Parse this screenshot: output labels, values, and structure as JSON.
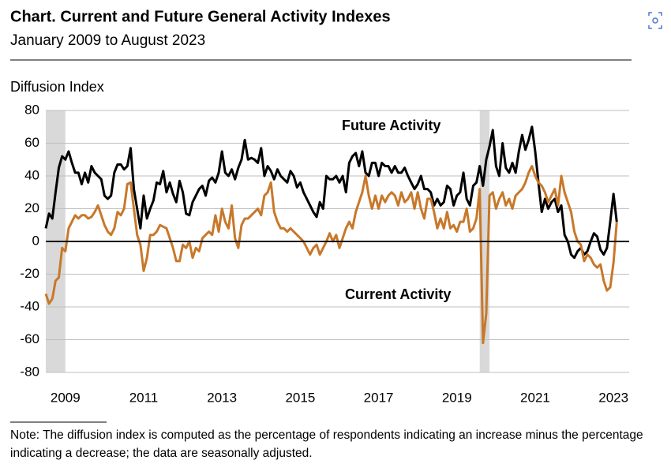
{
  "chart_data": {
    "type": "line",
    "title": "Chart. Current and Future General Activity Indexes",
    "subtitle": "January 2009 to August 2023",
    "y_label": "Diffusion Index",
    "note": "Note: The diffusion index is computed as the percentage of respondents indicating an increase minus the percentage indicating a decrease; the data are seasonally adjusted.",
    "xlim": [
      2009,
      2023.9
    ],
    "ylim": [
      -80,
      80
    ],
    "yticks": [
      -80,
      -60,
      -40,
      -20,
      0,
      20,
      40,
      60,
      80
    ],
    "xticks": [
      {
        "value": 2009.5,
        "label": "2009"
      },
      {
        "value": 2011.5,
        "label": "2011"
      },
      {
        "value": 2013.5,
        "label": "2013"
      },
      {
        "value": 2015.5,
        "label": "2015"
      },
      {
        "value": 2017.5,
        "label": "2017"
      },
      {
        "value": 2019.5,
        "label": "2019"
      },
      {
        "value": 2021.5,
        "label": "2021"
      },
      {
        "value": 2023.5,
        "label": "2023"
      }
    ],
    "grid": true,
    "shaded_periods": [
      [
        2009,
        2009.5
      ],
      [
        2020.083,
        2020.333
      ]
    ],
    "x": [
      2009,
      2009.083,
      2009.167,
      2009.25,
      2009.333,
      2009.417,
      2009.5,
      2009.583,
      2009.667,
      2009.75,
      2009.833,
      2009.917,
      2010,
      2010.083,
      2010.167,
      2010.25,
      2010.333,
      2010.417,
      2010.5,
      2010.583,
      2010.667,
      2010.75,
      2010.833,
      2010.917,
      2011,
      2011.083,
      2011.167,
      2011.25,
      2011.333,
      2011.417,
      2011.5,
      2011.583,
      2011.667,
      2011.75,
      2011.833,
      2011.917,
      2012,
      2012.083,
      2012.167,
      2012.25,
      2012.333,
      2012.417,
      2012.5,
      2012.583,
      2012.667,
      2012.75,
      2012.833,
      2012.917,
      2013,
      2013.083,
      2013.167,
      2013.25,
      2013.333,
      2013.417,
      2013.5,
      2013.583,
      2013.667,
      2013.75,
      2013.833,
      2013.917,
      2014,
      2014.083,
      2014.167,
      2014.25,
      2014.333,
      2014.417,
      2014.5,
      2014.583,
      2014.667,
      2014.75,
      2014.833,
      2014.917,
      2015,
      2015.083,
      2015.167,
      2015.25,
      2015.333,
      2015.417,
      2015.5,
      2015.583,
      2015.667,
      2015.75,
      2015.833,
      2015.917,
      2016,
      2016.083,
      2016.167,
      2016.25,
      2016.333,
      2016.417,
      2016.5,
      2016.583,
      2016.667,
      2016.75,
      2016.833,
      2016.917,
      2017,
      2017.083,
      2017.167,
      2017.25,
      2017.333,
      2017.417,
      2017.5,
      2017.583,
      2017.667,
      2017.75,
      2017.833,
      2017.917,
      2018,
      2018.083,
      2018.167,
      2018.25,
      2018.333,
      2018.417,
      2018.5,
      2018.583,
      2018.667,
      2018.75,
      2018.833,
      2018.917,
      2019,
      2019.083,
      2019.167,
      2019.25,
      2019.333,
      2019.417,
      2019.5,
      2019.583,
      2019.667,
      2019.75,
      2019.833,
      2019.917,
      2020,
      2020.083,
      2020.167,
      2020.25,
      2020.333,
      2020.417,
      2020.5,
      2020.583,
      2020.667,
      2020.75,
      2020.833,
      2020.917,
      2021,
      2021.083,
      2021.167,
      2021.25,
      2021.333,
      2021.417,
      2021.5,
      2021.583,
      2021.667,
      2021.75,
      2021.833,
      2021.917,
      2022,
      2022.083,
      2022.167,
      2022.25,
      2022.333,
      2022.417,
      2022.5,
      2022.583,
      2022.667,
      2022.75,
      2022.833,
      2022.917,
      2023,
      2023.083,
      2023.167,
      2023.25,
      2023.333,
      2023.417,
      2023.5,
      2023.583
    ],
    "series": [
      {
        "name": "Future Activity",
        "color": "#000000",
        "values": [
          8,
          17,
          14,
          30,
          45,
          52,
          50,
          55,
          48,
          42,
          42,
          35,
          42,
          36,
          46,
          42,
          40,
          38,
          28,
          26,
          28,
          42,
          47,
          47,
          44,
          46,
          57,
          32,
          20,
          8,
          28,
          14,
          20,
          25,
          36,
          35,
          43,
          30,
          36,
          29,
          24,
          37,
          30,
          17,
          16,
          24,
          28,
          32,
          34,
          28,
          37,
          39,
          36,
          42,
          55,
          42,
          40,
          44,
          38,
          45,
          50,
          62,
          50,
          51,
          50,
          48,
          57,
          40,
          46,
          43,
          38,
          44,
          40,
          38,
          36,
          43,
          40,
          33,
          36,
          30,
          26,
          22,
          18,
          15,
          24,
          20,
          40,
          38,
          38,
          40,
          36,
          40,
          30,
          48,
          52,
          54,
          46,
          55,
          42,
          40,
          48,
          48,
          40,
          48,
          46,
          46,
          42,
          46,
          42,
          42,
          45,
          40,
          36,
          32,
          35,
          40,
          32,
          32,
          30,
          22,
          26,
          22,
          24,
          34,
          32,
          22,
          28,
          30,
          42,
          26,
          22,
          34,
          36,
          46,
          34,
          50,
          58,
          68,
          46,
          40,
          60,
          45,
          42,
          48,
          42,
          55,
          65,
          56,
          62,
          70,
          55,
          36,
          18,
          26,
          20,
          24,
          26,
          18,
          22,
          4,
          0,
          -8,
          -10,
          -6,
          -4,
          -8,
          -6,
          0,
          5,
          3,
          -5,
          -8,
          -4,
          12,
          29,
          12
        ]
      },
      {
        "name": "Current Activity",
        "color": "#c8782a",
        "values": [
          -32,
          -38,
          -35,
          -24,
          -22,
          -4,
          -6,
          8,
          12,
          16,
          14,
          16,
          16,
          14,
          15,
          18,
          22,
          16,
          10,
          6,
          4,
          8,
          18,
          16,
          20,
          35,
          36,
          20,
          4,
          -2,
          -18,
          -10,
          4,
          4,
          6,
          10,
          9,
          8,
          2,
          -4,
          -12,
          -12,
          -2,
          -4,
          0,
          -10,
          -4,
          -6,
          2,
          4,
          6,
          4,
          16,
          6,
          20,
          12,
          8,
          22,
          2,
          -4,
          10,
          14,
          14,
          16,
          18,
          20,
          16,
          28,
          30,
          36,
          18,
          12,
          8,
          8,
          6,
          8,
          6,
          4,
          2,
          0,
          -4,
          -8,
          -4,
          -2,
          -8,
          -4,
          0,
          5,
          0,
          4,
          -4,
          2,
          8,
          12,
          8,
          18,
          24,
          30,
          40,
          28,
          20,
          28,
          20,
          28,
          24,
          28,
          30,
          28,
          22,
          30,
          24,
          26,
          30,
          20,
          30,
          20,
          14,
          26,
          26,
          18,
          8,
          14,
          8,
          18,
          8,
          10,
          6,
          12,
          12,
          20,
          6,
          8,
          14,
          32,
          -62,
          -44,
          28,
          30,
          20,
          26,
          30,
          22,
          26,
          20,
          28,
          30,
          32,
          36,
          42,
          46,
          40,
          36,
          34,
          30,
          24,
          28,
          32,
          22,
          40,
          30,
          24,
          18,
          6,
          0,
          -2,
          -12,
          -8,
          -10,
          -14,
          -16,
          -14,
          -24,
          -30,
          -28,
          -13,
          12
        ]
      }
    ],
    "annotations": [
      {
        "text": "Future Activity",
        "series": 0
      },
      {
        "text": "Current Activity",
        "series": 1
      }
    ]
  }
}
